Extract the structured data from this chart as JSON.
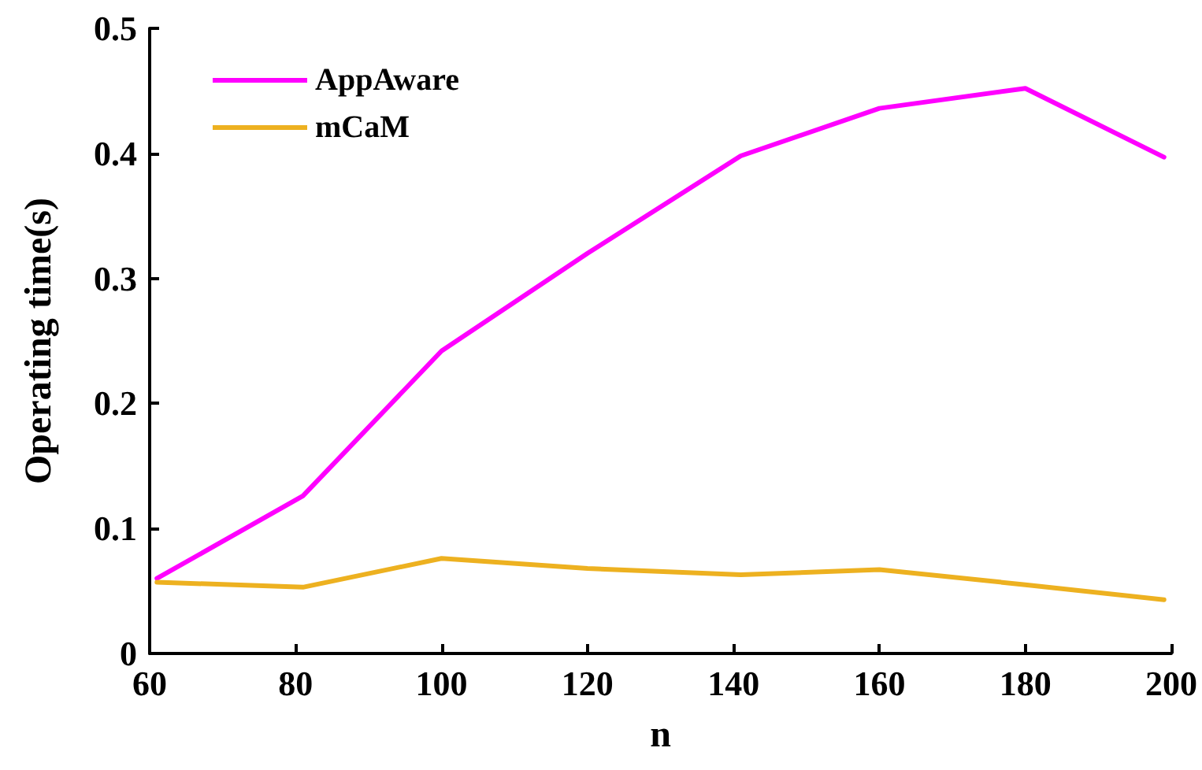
{
  "chart_data": {
    "type": "line",
    "xlabel": "n",
    "ylabel": "Operating time(s)",
    "xlim": [
      60,
      200
    ],
    "xticks": [
      60,
      80,
      100,
      120,
      140,
      160,
      180,
      200
    ],
    "ylim": [
      0,
      0.5
    ],
    "yticks": [
      0,
      0.1,
      0.2,
      0.3,
      0.4,
      0.5
    ],
    "grid": false,
    "legend": "top left",
    "marker": "none",
    "line_style": "solid",
    "series": [
      {
        "name": "AppAware",
        "color": "#ff00ff",
        "x": [
          61,
          81,
          100,
          120,
          141,
          160,
          180,
          199
        ],
        "values": [
          0.06,
          0.126,
          0.242,
          0.32,
          0.398,
          0.436,
          0.452,
          0.397
        ]
      },
      {
        "name": "mCaM",
        "color": "#edb120",
        "x": [
          61,
          81,
          100,
          120,
          141,
          160,
          180,
          199
        ],
        "values": [
          0.057,
          0.053,
          0.076,
          0.068,
          0.063,
          0.067,
          0.055,
          0.043
        ]
      }
    ]
  }
}
